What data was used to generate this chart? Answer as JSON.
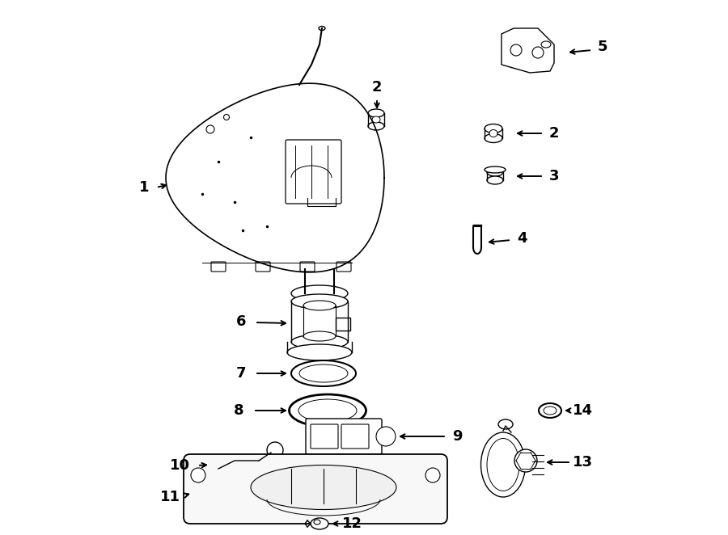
{
  "background_color": "#ffffff",
  "line_color": "#000000",
  "figure_width": 9.0,
  "figure_height": 6.62,
  "dpi": 100
}
